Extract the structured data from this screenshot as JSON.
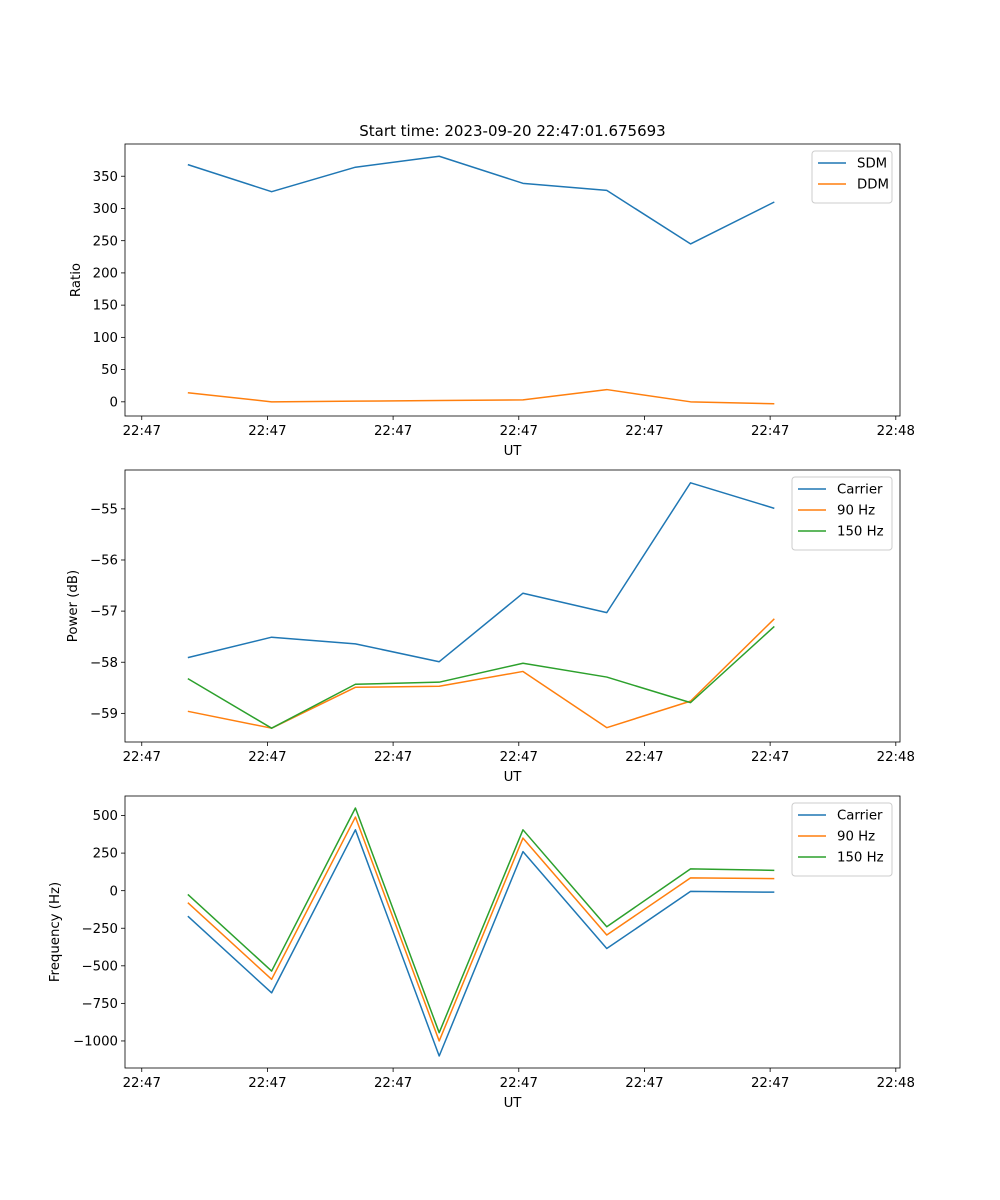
{
  "title": "Start time: 2023-09-20 22:47:01.675693",
  "colors": {
    "blue": "#1f77b4",
    "orange": "#ff7f0e",
    "green": "#2ca02c",
    "axis": "#000000",
    "legend_border": "#cccccc"
  },
  "chart_data": [
    {
      "type": "line",
      "title": "Start time: 2023-09-20 22:47:01.675693",
      "xlabel": "UT",
      "ylabel": "Ratio",
      "xlim": [
        0,
        9.25
      ],
      "ylim": [
        -22,
        400
      ],
      "x": [
        0.75,
        1.75,
        2.75,
        3.75,
        4.75,
        5.75,
        6.75,
        7.75
      ],
      "xticks": [
        0.2,
        1.7,
        3.2,
        4.7,
        6.2,
        7.7,
        9.2
      ],
      "xtick_labels": [
        "22:47",
        "22:47",
        "22:47",
        "22:47",
        "22:47",
        "22:47",
        "22:48"
      ],
      "yticks": [
        0,
        50,
        100,
        150,
        200,
        250,
        300,
        350
      ],
      "ytick_labels": [
        "0",
        "50",
        "100",
        "150",
        "200",
        "250",
        "300",
        "350"
      ],
      "legend_position": "top-right",
      "series": [
        {
          "name": "SDM",
          "color": "#1f77b4",
          "values": [
            368,
            326,
            364,
            381,
            339,
            328,
            245,
            310
          ]
        },
        {
          "name": "DDM",
          "color": "#ff7f0e",
          "values": [
            14,
            0,
            1,
            2,
            3,
            19,
            0,
            -3
          ]
        }
      ]
    },
    {
      "type": "line",
      "title": "",
      "xlabel": "UT",
      "ylabel": "Power (dB)",
      "xlim": [
        0,
        9.25
      ],
      "ylim": [
        -59.56,
        -54.24
      ],
      "x": [
        0.75,
        1.75,
        2.75,
        3.75,
        4.75,
        5.75,
        6.75,
        7.75
      ],
      "xticks": [
        0.2,
        1.7,
        3.2,
        4.7,
        6.2,
        7.7,
        9.2
      ],
      "xtick_labels": [
        "22:47",
        "22:47",
        "22:47",
        "22:47",
        "22:47",
        "22:47",
        "22:48"
      ],
      "yticks": [
        -59,
        -58,
        -57,
        -56,
        -55
      ],
      "ytick_labels": [
        "−59",
        "−58",
        "−57",
        "−56",
        "−55"
      ],
      "legend_position": "top-right",
      "series": [
        {
          "name": "Carrier",
          "color": "#1f77b4",
          "values": [
            -57.91,
            -57.51,
            -57.64,
            -57.99,
            -56.65,
            -57.03,
            -54.49,
            -54.99
          ]
        },
        {
          "name": "90 Hz",
          "color": "#ff7f0e",
          "values": [
            -58.96,
            -59.29,
            -58.49,
            -58.47,
            -58.18,
            -59.28,
            -58.76,
            -57.15
          ]
        },
        {
          "name": "150 Hz",
          "color": "#2ca02c",
          "values": [
            -58.32,
            -59.29,
            -58.43,
            -58.39,
            -58.02,
            -58.29,
            -58.79,
            -57.3
          ]
        }
      ]
    },
    {
      "type": "line",
      "title": "",
      "xlabel": "UT",
      "ylabel": "Frequency (Hz)",
      "xlim": [
        0,
        9.25
      ],
      "ylim": [
        -1180,
        630
      ],
      "x": [
        0.75,
        1.75,
        2.75,
        3.75,
        4.75,
        5.75,
        6.75,
        7.75
      ],
      "xticks": [
        0.2,
        1.7,
        3.2,
        4.7,
        6.2,
        7.7,
        9.2
      ],
      "xtick_labels": [
        "22:47",
        "22:47",
        "22:47",
        "22:47",
        "22:47",
        "22:47",
        "22:48"
      ],
      "yticks": [
        -1000,
        -750,
        -500,
        -250,
        0,
        250,
        500
      ],
      "ytick_labels": [
        "−1000",
        "−750",
        "−500",
        "−250",
        "0",
        "250",
        "500"
      ],
      "legend_position": "top-right",
      "series": [
        {
          "name": "Carrier",
          "color": "#1f77b4",
          "values": [
            -170,
            -680,
            405,
            -1100,
            260,
            -385,
            -5,
            -10
          ]
        },
        {
          "name": "90 Hz",
          "color": "#ff7f0e",
          "values": [
            -80,
            -590,
            490,
            -1000,
            350,
            -295,
            85,
            80
          ]
        },
        {
          "name": "150 Hz",
          "color": "#2ca02c",
          "values": [
            -25,
            -535,
            550,
            -945,
            405,
            -240,
            145,
            135
          ]
        }
      ]
    }
  ]
}
